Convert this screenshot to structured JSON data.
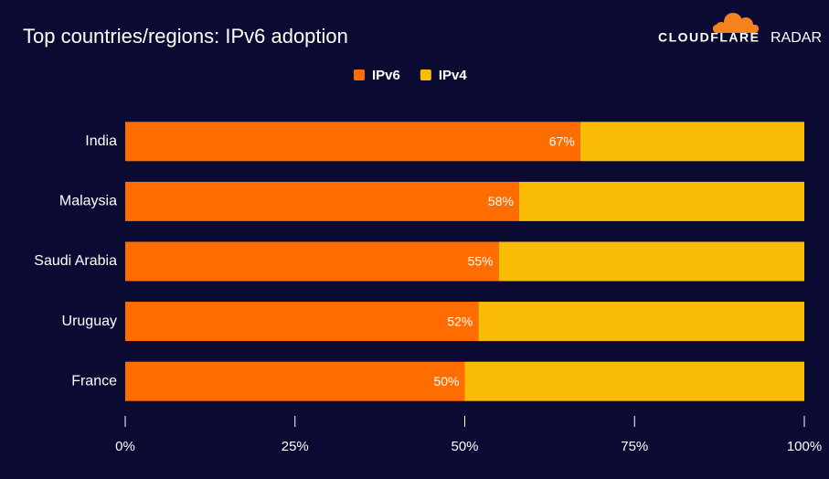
{
  "chart_data": {
    "type": "stacked-barh",
    "title": "Top countries/regions: IPv6 adoption",
    "categories": [
      "India",
      "Malaysia",
      "Saudi Arabia",
      "Uruguay",
      "France"
    ],
    "series": [
      {
        "name": "IPv6",
        "color": "#ff6d00",
        "values": [
          67,
          58,
          55,
          52,
          50
        ],
        "value_labels": [
          "67%",
          "58%",
          "55%",
          "52%",
          "50%"
        ]
      },
      {
        "name": "IPv4",
        "color": "#fbbc05",
        "values": [
          33,
          42,
          45,
          48,
          50
        ]
      }
    ],
    "xlim": [
      0,
      100
    ],
    "xticks": [
      {
        "value": 0,
        "label": "0%"
      },
      {
        "value": 25,
        "label": "25%"
      },
      {
        "value": 50,
        "label": "50%"
      },
      {
        "value": 75,
        "label": "75%"
      },
      {
        "value": 100,
        "label": "100%"
      }
    ],
    "legend": "top"
  },
  "logo": {
    "wordmark": "CLOUDFLARE",
    "product": "RADAR"
  }
}
